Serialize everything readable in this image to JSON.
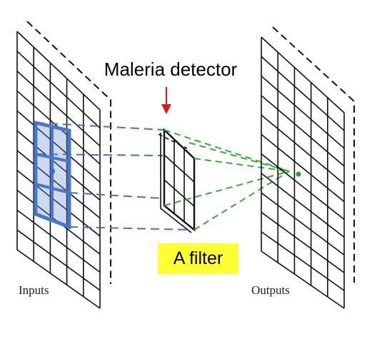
{
  "labels": {
    "detector_title": "Maleria detector",
    "filter_label": "A filter",
    "inputs_label": "Inputs",
    "outputs_label": "Outputs"
  },
  "colors": {
    "grid_stroke": "#111111",
    "input_highlight": "#4a78c9",
    "projection_blue": "#4a6fbf",
    "projection_green": "#3aaa3a",
    "arrow_red": "#d7191c",
    "filter_label_bg": "#ffff33"
  },
  "icons": {
    "pointer_arrow": "down-arrow-icon"
  }
}
